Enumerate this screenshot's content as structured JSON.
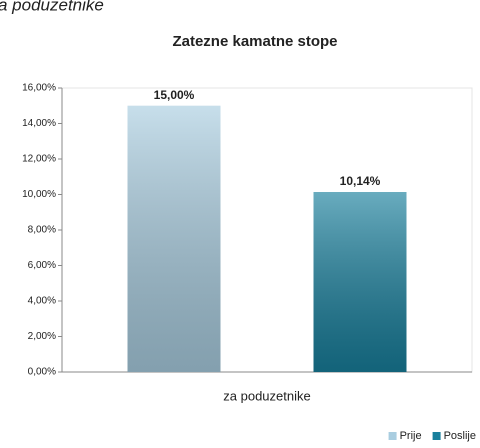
{
  "caption": "a poduzetnike",
  "chart_data": {
    "type": "bar",
    "title": "Zatezne kamatne stope",
    "categories": [
      "za poduzetnike"
    ],
    "series": [
      {
        "name": "Prije",
        "color": "#a9cde0",
        "values": [
          15
        ],
        "value_labels": [
          "15,00%"
        ]
      },
      {
        "name": "Poslije",
        "color": "#187f9c",
        "values": [
          10.14
        ],
        "value_labels": [
          "10,14%"
        ]
      }
    ],
    "ylim": [
      0,
      16
    ],
    "yticks": [
      {
        "value": 0,
        "label": "0,00%"
      },
      {
        "value": 2,
        "label": "2,00%"
      },
      {
        "value": 4,
        "label": "4,00%"
      },
      {
        "value": 6,
        "label": "6,00%"
      },
      {
        "value": 8,
        "label": "8,00%"
      },
      {
        "value": 10,
        "label": "10,00%"
      },
      {
        "value": 12,
        "label": "12,00%"
      },
      {
        "value": 14,
        "label": "14,00%"
      },
      {
        "value": 16,
        "label": "16,00%"
      }
    ],
    "legend": "bottom-right"
  }
}
